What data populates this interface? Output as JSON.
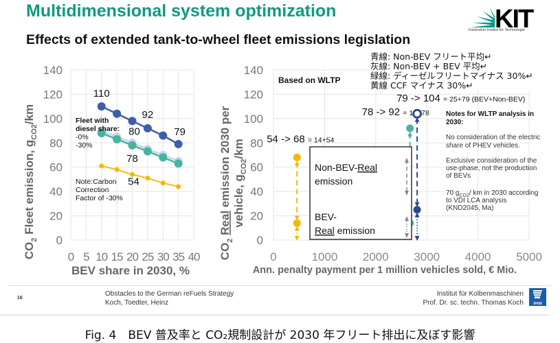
{
  "slide": {
    "title": "Multidimensional system optimization",
    "subtitle": "Effects of extended tank-to-wheel fleet emissions legislation",
    "logo": {
      "name": "KIT",
      "tagline": "Karlsruher Institut für Technologie",
      "colors": [
        "#009682",
        "#000000"
      ]
    },
    "jp_legend": [
      "青線: Non-BEV フリート平均↵",
      "灰線: Non-BEV + BEV 平均↵",
      "緑線: ディーゼルフリートマイナス 30%↵",
      "黄線 CCF マイナス 30%↵"
    ],
    "footer": {
      "page_number": "16",
      "left_line1": "Obstacles to the German reFuels Strategy",
      "left_line2": "Koch, Toedter, Heinz",
      "right_line1": "Institut für Kolbenmaschinen",
      "right_line2": "Prof. Dr. sc. techn. Thomas Koch",
      "badge": "IFKM"
    },
    "caption": "Fig. 4　BEV 普及率と CO₂規制設計が 2030 年フリート排出に及ぼす影響"
  },
  "chart_data": [
    {
      "type": "line",
      "title": "",
      "xlabel": "BEV share in 2030, %",
      "ylabel": "CO₂ Fleet emission, g_CO₂/km",
      "xlim": [
        0,
        40
      ],
      "ylim": [
        0,
        140
      ],
      "xticks": [
        0,
        5,
        10,
        15,
        20,
        25,
        30,
        35,
        40
      ],
      "yticks": [
        0,
        20,
        40,
        60,
        80,
        100,
        120,
        140
      ],
      "grid": true,
      "x": [
        10,
        15,
        20,
        25,
        30,
        35
      ],
      "series": [
        {
          "name": "Non-BEV fleet average",
          "color": "#3d5ea8",
          "values": [
            110,
            104,
            98,
            92,
            86,
            79
          ]
        },
        {
          "name": "Non-BEV + BEV average (diesel share -0%)",
          "color": "#c9d3e6",
          "values": [
            90,
            85,
            80,
            75,
            70,
            65
          ]
        },
        {
          "name": "Diesel fleet -30%",
          "color": "#47b3a1",
          "values": [
            88,
            83,
            78,
            73,
            68,
            63
          ]
        },
        {
          "name": "CCF -30%",
          "color": "#f5b800",
          "values": [
            61,
            58,
            54,
            51,
            47,
            44
          ]
        }
      ],
      "data_labels": [
        {
          "text": "110",
          "series": 0,
          "x": 10
        },
        {
          "text": "92",
          "series": 0,
          "x": 25
        },
        {
          "text": "79",
          "series": 0,
          "x": 35
        },
        {
          "text": "80",
          "series": 1,
          "x": 20
        },
        {
          "text": "78",
          "series": 2,
          "x": 20
        },
        {
          "text": "54",
          "series": 3,
          "x": 20
        }
      ],
      "annotations": [
        {
          "lines": [
            "Fleet with",
            "diesel share:"
          ],
          "bold": true
        },
        {
          "lines": [
            "-0%",
            "-30%"
          ]
        },
        {
          "lines": [
            "Note:Carbon",
            "Correction",
            "Factor of -30%"
          ]
        }
      ]
    },
    {
      "type": "scatter",
      "title": "Based on WLTP",
      "xlabel": "Ann. penalty payment per 1 million vehicles sold, € Mio.",
      "ylabel": "CO₂ Real emission 2030 per vehicle, g_CO₂/km",
      "xlim": [
        0,
        5000
      ],
      "ylim": [
        0,
        140
      ],
      "xticks": [
        0,
        1000,
        2000,
        3000,
        4000,
        5000
      ],
      "yticks": [
        0,
        20,
        40,
        60,
        80,
        100,
        120,
        140
      ],
      "grid": true,
      "series": [
        {
          "name": "CCF -30%",
          "color": "#f5b800",
          "x": 460,
          "bev": 14,
          "total": 68,
          "label_main": "54 -> 68",
          "label_small": "= 14+54"
        },
        {
          "name": "Diesel fleet -30%",
          "color": "#47b3a1",
          "x": 2670,
          "bev": 14,
          "total": 92,
          "label_main": "78 -> 92",
          "label_small": "= 14+78"
        },
        {
          "name": "Non-BEV fleet average",
          "color": "#2f4a8a",
          "x": 2810,
          "bev": 25,
          "total": 104,
          "label_main": "79 -> 104",
          "label_small": "= 25+79 (BEV+Non-BEV)"
        }
      ],
      "legend_box": {
        "non_bev_line1": "Non-BEV-",
        "non_bev_real": "Real",
        "non_bev_line2": "emission",
        "bev_line1": "BEV-",
        "bev_real": "Real",
        "bev_line2": " emission"
      },
      "notes": {
        "heading": [
          "Notes for WLTP analysis in",
          "2030:"
        ],
        "para1": [
          "No consideration of the electric",
          "share of PHEV vehicles."
        ],
        "para2": [
          "Exclusive consideration of the",
          "use-phase, not the production",
          "of BEVs"
        ],
        "para3": [
          "70 g",
          "CO2",
          "/ km in 2030 according",
          "to VDI LCA analysis",
          "(KND2045, Ma)"
        ]
      }
    }
  ]
}
